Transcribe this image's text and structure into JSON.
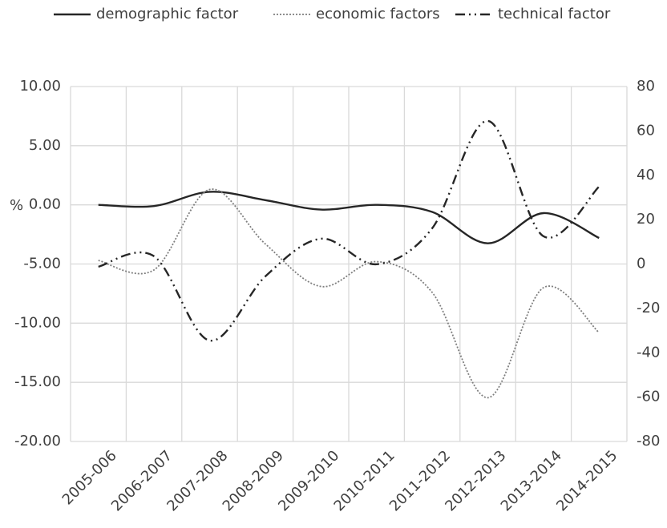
{
  "chart_data": {
    "type": "line",
    "y_label": "%",
    "categories": [
      "2005-006",
      "2006-2007",
      "2007-2008",
      "2008-2009",
      "2009-2010",
      "2010-2011",
      "2011-2012",
      "2012-2013",
      "2013-2014",
      "2014-2015"
    ],
    "series": [
      {
        "name": "demographic factor",
        "color": "#262626",
        "style": "solid",
        "values": [
          0.0,
          -0.1,
          1.1,
          0.4,
          -0.4,
          0.0,
          -0.6,
          -3.25,
          -0.7,
          -2.8
        ]
      },
      {
        "name": "economic factors",
        "color": "#7f7f7f",
        "style": "dotted",
        "values": [
          -4.7,
          -5.5,
          1.3,
          -3.3,
          -6.9,
          -4.8,
          -7.4,
          -16.3,
          -7.0,
          -10.8
        ]
      },
      {
        "name": "technical factor",
        "color": "#262626",
        "style": "dash-dot-dot",
        "axis": "y2",
        "values": [
          -1.2,
          3.5,
          -34.5,
          -5.6,
          11.4,
          -0.1,
          16.1,
          64.5,
          12.5,
          34.9
        ]
      }
    ],
    "ylim": [
      -20,
      10
    ],
    "yticks": [
      {
        "value": -20,
        "label": "-20.00"
      },
      {
        "value": -15,
        "label": "-15.00"
      },
      {
        "value": -10,
        "label": "-10.00"
      },
      {
        "value": -5,
        "label": "-5.00"
      },
      {
        "value": 0,
        "label": "0.00"
      },
      {
        "value": 5,
        "label": "5.00"
      },
      {
        "value": 10,
        "label": "10.00"
      }
    ],
    "y2lim": [
      -80,
      80
    ],
    "y2ticks": [
      -80,
      -60,
      -40,
      -20,
      0,
      20,
      40,
      60,
      80
    ],
    "grid": true,
    "legend": "top"
  }
}
